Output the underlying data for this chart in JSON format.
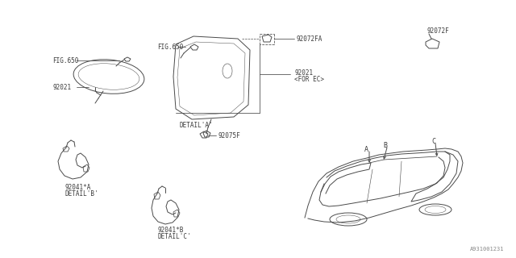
{
  "bg_color": "#ffffff",
  "lc": "#4a4a4a",
  "tc": "#3a3a3a",
  "fig_width": 6.4,
  "fig_height": 3.2,
  "dpi": 100,
  "watermark": "A931001231",
  "labels": {
    "fig650_left": "FIG.650",
    "fig650_mid": "FIG.650",
    "part_92021_left": "92021",
    "part_92021_ec": "92021",
    "part_92021_ec2": "<FOR EC>",
    "part_92072FA": "92072FA",
    "part_92072F": "92072F",
    "part_92075F": "92075F",
    "detail_a": "DETAIL'A'",
    "part_92041A": "92041*A",
    "detail_b": "DETAIL'B'",
    "part_92041B": "92041*B",
    "detail_c": "DETAIL'C'",
    "label_a": "A",
    "label_b": "B",
    "label_c": "C"
  }
}
